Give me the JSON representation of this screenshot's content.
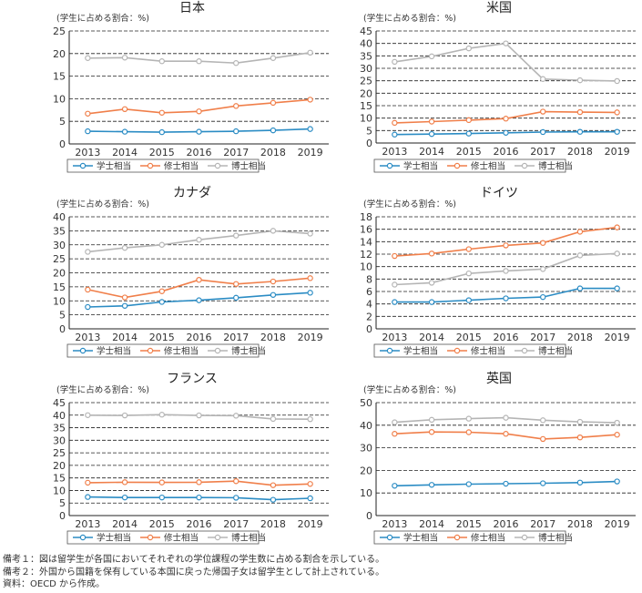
{
  "colors": {
    "bachelor": "#2b8cc4",
    "master": "#f07f4a",
    "doctor": "#b5b5b5",
    "axis": "#222222",
    "grid": "#222222"
  },
  "notes": [
    "備考１：図は留学生が各国においてそれぞれの学位課程の学生数に占める割合を示している。",
    "備考２：外国から国籍を保有している本国に戻った帰国子女は留学生として計上されている。",
    "資料：OECD から作成。"
  ],
  "chart_data": [
    {
      "type": "line",
      "title": "日本",
      "ylabel": "(学生に占める割合：%)",
      "x": [
        "2013",
        "2014",
        "2015",
        "2016",
        "2017",
        "2018",
        "2019"
      ],
      "ylim": [
        0,
        25
      ],
      "yticks": [
        0,
        5,
        10,
        15,
        20,
        25
      ],
      "grid": "dashed",
      "series": [
        {
          "name": "学士相当",
          "color": "#2b8cc4",
          "values": [
            2.8,
            2.7,
            2.6,
            2.7,
            2.8,
            3.0,
            3.3
          ]
        },
        {
          "name": "修士相当",
          "color": "#f07f4a",
          "values": [
            6.7,
            7.7,
            6.9,
            7.2,
            8.4,
            9.1,
            9.8
          ]
        },
        {
          "name": "博士相当",
          "color": "#b5b5b5",
          "values": [
            19.0,
            19.1,
            18.3,
            18.3,
            17.9,
            19.0,
            20.2
          ]
        }
      ]
    },
    {
      "type": "line",
      "title": "米国",
      "ylabel": "(学生に占める割合：%)",
      "x": [
        "2013",
        "2014",
        "2015",
        "2016",
        "2017",
        "2018",
        "2019"
      ],
      "ylim": [
        0,
        45
      ],
      "yticks": [
        0,
        5,
        10,
        15,
        20,
        25,
        30,
        35,
        40,
        45
      ],
      "grid": "dashed",
      "series": [
        {
          "name": "学士相当",
          "color": "#2b8cc4",
          "values": [
            3.4,
            3.6,
            3.8,
            4.1,
            4.4,
            4.5,
            4.5
          ]
        },
        {
          "name": "修士相当",
          "color": "#f07f4a",
          "values": [
            8.1,
            8.6,
            9.2,
            9.8,
            12.6,
            12.4,
            12.3
          ]
        },
        {
          "name": "博士相当",
          "color": "#b5b5b5",
          "values": [
            32.6,
            34.8,
            38.0,
            40.0,
            25.7,
            25.2,
            24.9
          ]
        }
      ]
    },
    {
      "type": "line",
      "title": "カナダ",
      "ylabel": "(学生に占める割合：%)",
      "x": [
        "2013",
        "2014",
        "2015",
        "2016",
        "2017",
        "2018",
        "2019"
      ],
      "ylim": [
        0,
        40
      ],
      "yticks": [
        0,
        5,
        10,
        15,
        20,
        25,
        30,
        35,
        40
      ],
      "grid": "dashed",
      "series": [
        {
          "name": "学士相当",
          "color": "#2b8cc4",
          "values": [
            7.8,
            8.2,
            9.6,
            10.2,
            11.1,
            12.1,
            12.9
          ]
        },
        {
          "name": "修士相当",
          "color": "#f07f4a",
          "values": [
            14.0,
            11.2,
            13.4,
            17.5,
            16.0,
            16.9,
            18.1
          ]
        },
        {
          "name": "博士相当",
          "color": "#b5b5b5",
          "values": [
            27.5,
            28.9,
            30.0,
            31.8,
            33.3,
            35.0,
            34.0
          ]
        }
      ]
    },
    {
      "type": "line",
      "title": "ドイツ",
      "ylabel": "(学生に占める割合：%)",
      "x": [
        "2013",
        "2014",
        "2015",
        "2016",
        "2017",
        "2018",
        "2019"
      ],
      "ylim": [
        0,
        18
      ],
      "yticks": [
        0,
        2,
        4,
        6,
        8,
        10,
        12,
        14,
        16,
        18
      ],
      "grid": "dashed",
      "series": [
        {
          "name": "学士相当",
          "color": "#2b8cc4",
          "values": [
            4.3,
            4.3,
            4.6,
            4.9,
            5.1,
            6.5,
            6.5
          ]
        },
        {
          "name": "修士相当",
          "color": "#f07f4a",
          "values": [
            11.7,
            12.1,
            12.8,
            13.4,
            13.8,
            15.6,
            16.3
          ]
        },
        {
          "name": "博士相当",
          "color": "#b5b5b5",
          "values": [
            7.1,
            7.4,
            8.9,
            9.3,
            9.6,
            11.8,
            12.1
          ]
        }
      ]
    },
    {
      "type": "line",
      "title": "フランス",
      "ylabel": "(学生に占める割合：%)",
      "x": [
        "2013",
        "2014",
        "2015",
        "2016",
        "2017",
        "2018",
        "2019"
      ],
      "ylim": [
        0,
        45
      ],
      "yticks": [
        0,
        5,
        10,
        15,
        20,
        25,
        30,
        35,
        40,
        45
      ],
      "grid": "dashed",
      "series": [
        {
          "name": "学士相当",
          "color": "#2b8cc4",
          "values": [
            7.4,
            7.2,
            7.2,
            7.2,
            7.1,
            6.3,
            6.9
          ]
        },
        {
          "name": "修士相当",
          "color": "#f07f4a",
          "values": [
            13.1,
            13.3,
            13.2,
            13.3,
            13.7,
            12.1,
            12.6
          ]
        },
        {
          "name": "博士相当",
          "color": "#b5b5b5",
          "values": [
            40.0,
            39.9,
            40.2,
            39.9,
            39.8,
            38.5,
            38.4
          ]
        }
      ]
    },
    {
      "type": "line",
      "title": "英国",
      "ylabel": "(学生に占める割合：%)",
      "x": [
        "2013",
        "2014",
        "2015",
        "2016",
        "2017",
        "2018",
        "2019"
      ],
      "ylim": [
        0,
        50
      ],
      "yticks": [
        0,
        10,
        20,
        30,
        40,
        50
      ],
      "grid": "dashed",
      "series": [
        {
          "name": "学士相当",
          "color": "#2b8cc4",
          "values": [
            13.2,
            13.6,
            13.9,
            14.1,
            14.3,
            14.6,
            15.1
          ]
        },
        {
          "name": "修士相当",
          "color": "#f07f4a",
          "values": [
            36.2,
            37.0,
            36.9,
            36.2,
            33.9,
            34.6,
            35.8
          ]
        },
        {
          "name": "博士相当",
          "color": "#b5b5b5",
          "values": [
            41.3,
            42.4,
            42.9,
            43.3,
            42.2,
            41.5,
            41.1
          ]
        }
      ]
    }
  ]
}
